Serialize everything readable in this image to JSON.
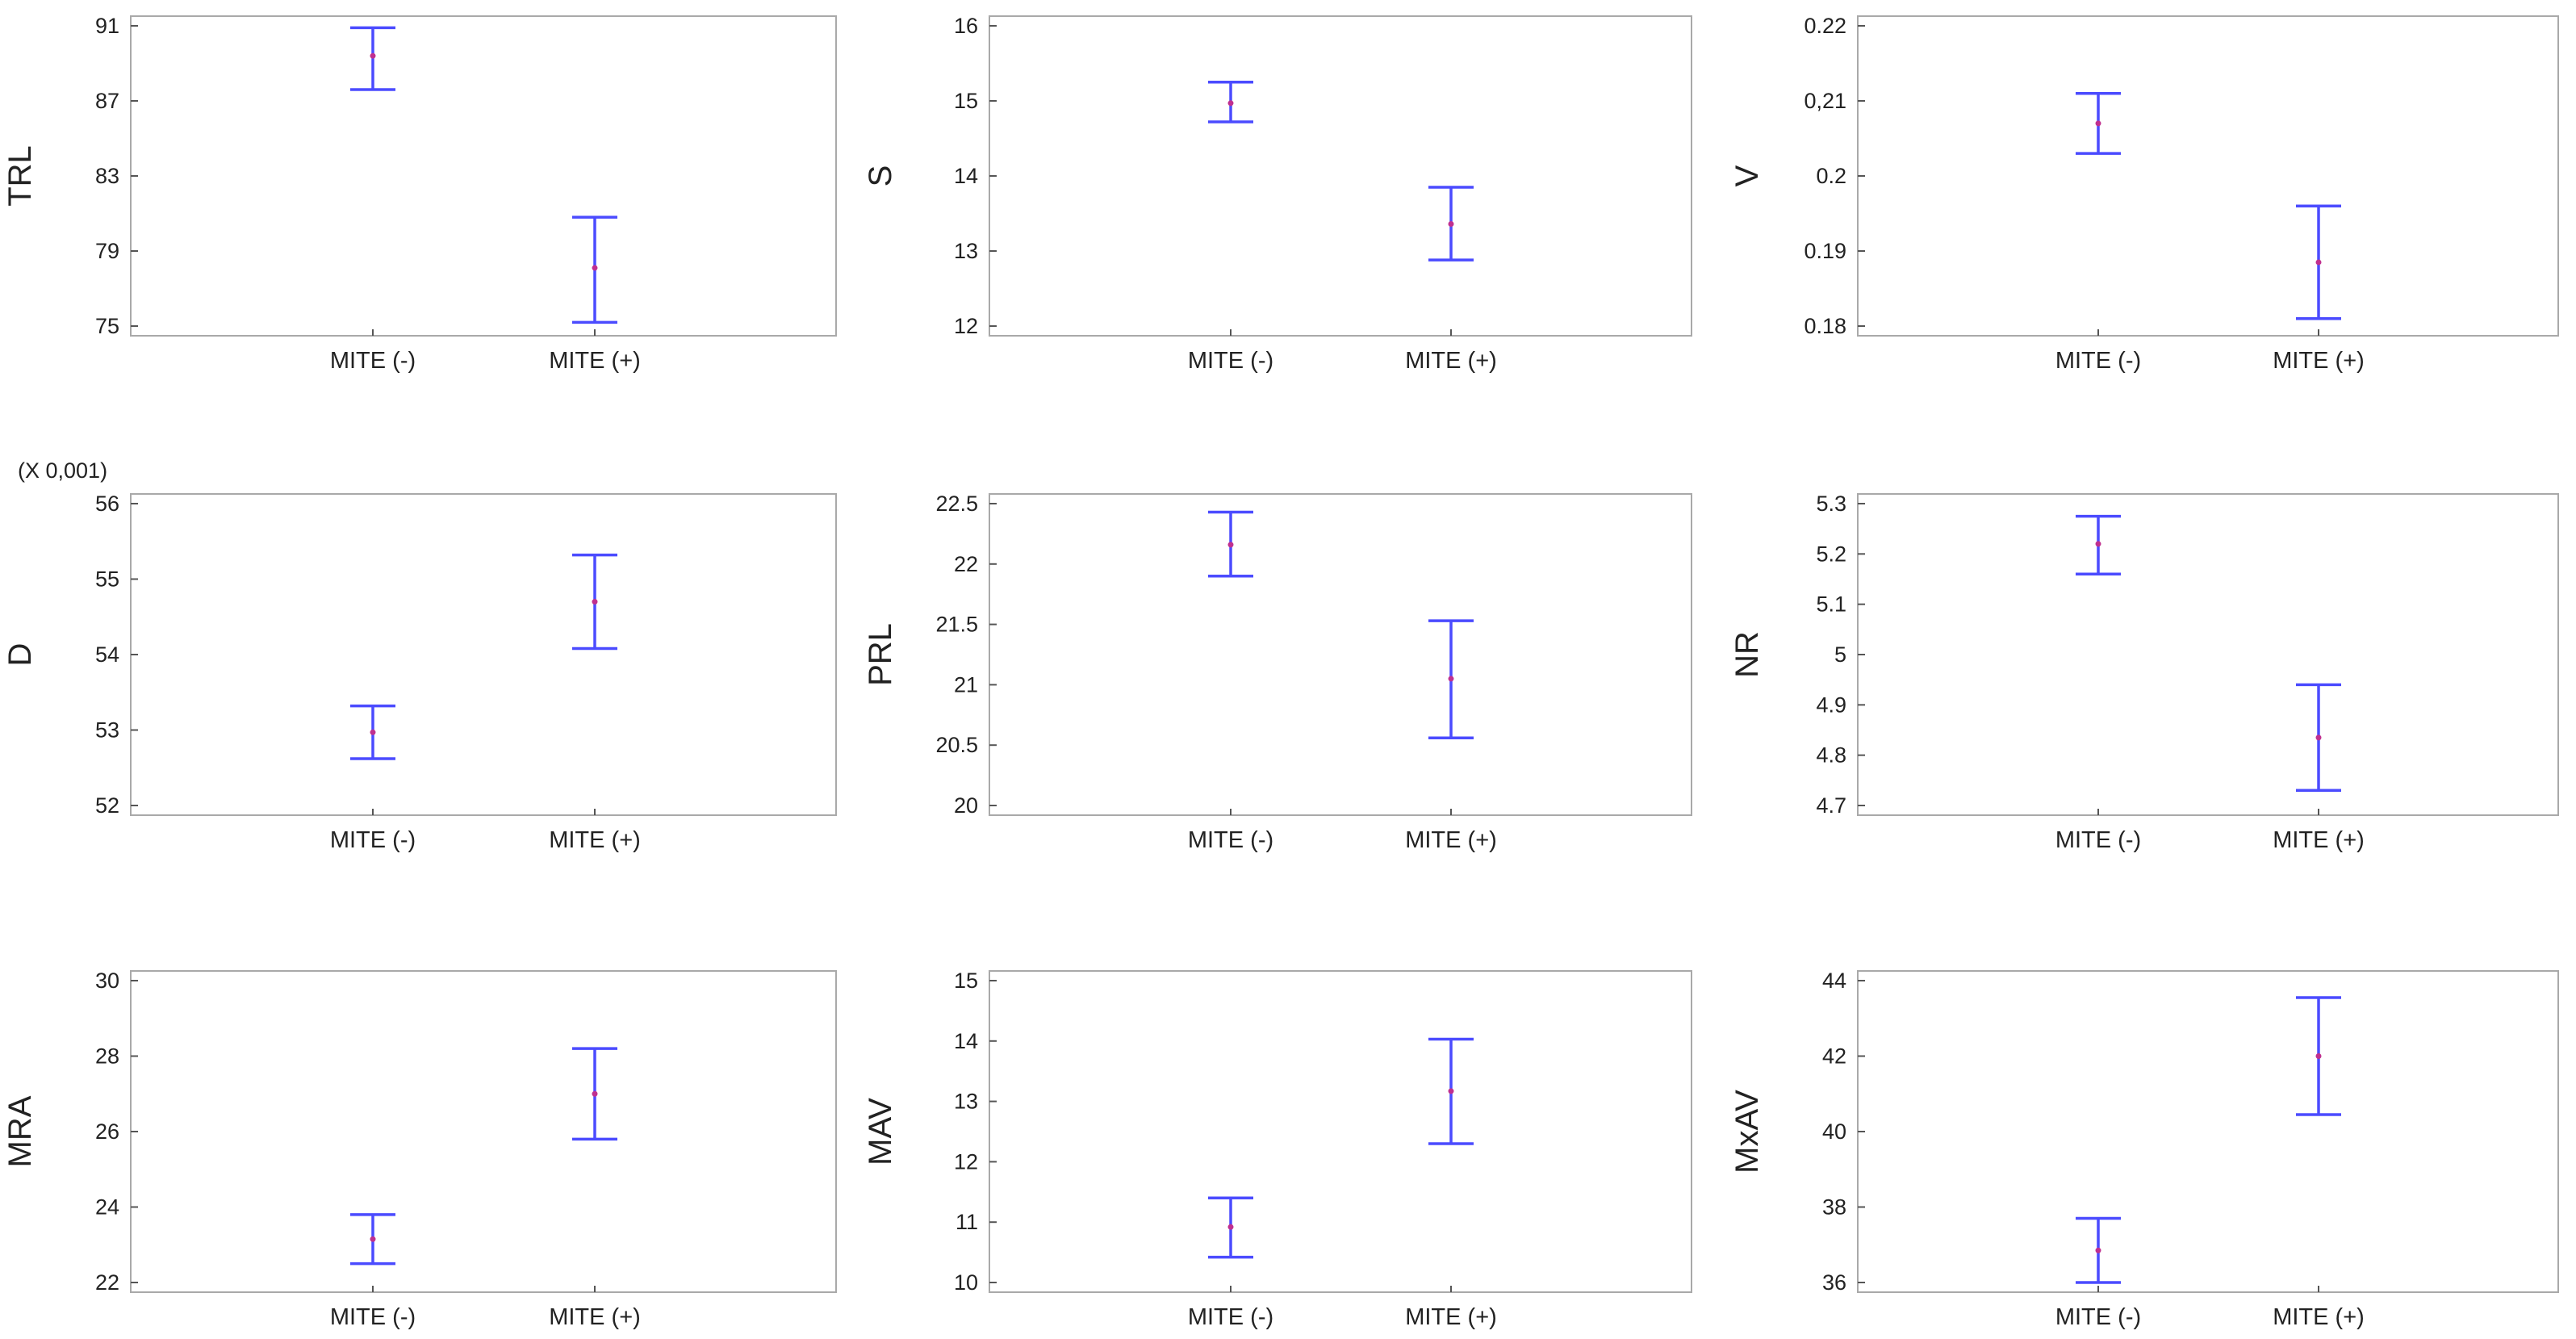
{
  "chart_data": [
    {
      "type": "errorbar",
      "ylabel": "TRL",
      "categories": [
        "MITE (-)",
        "MITE (+)"
      ],
      "ylim": [
        75,
        91
      ],
      "yticks": [
        75,
        79,
        83,
        87,
        91
      ],
      "ytick_labels": [
        "75",
        "79",
        "83",
        "87",
        "91"
      ],
      "series": [
        {
          "category": "MITE (-)",
          "mean": 89.4,
          "lower": 87.6,
          "upper": 90.9
        },
        {
          "category": "MITE (+)",
          "mean": 78.1,
          "lower": 75.2,
          "upper": 80.8
        }
      ],
      "colors": {
        "bar": "#4b4bff",
        "mean": "#c0308f"
      }
    },
    {
      "type": "errorbar",
      "ylabel": "S",
      "categories": [
        "MITE (-)",
        "MITE (+)"
      ],
      "ylim": [
        12,
        16
      ],
      "yticks": [
        12,
        13,
        14,
        15,
        16
      ],
      "ytick_labels": [
        "12",
        "13",
        "14",
        "15",
        "16"
      ],
      "series": [
        {
          "category": "MITE (-)",
          "mean": 14.97,
          "lower": 14.72,
          "upper": 15.25
        },
        {
          "category": "MITE (+)",
          "mean": 13.36,
          "lower": 12.88,
          "upper": 13.85
        }
      ],
      "colors": {
        "bar": "#4b4bff",
        "mean": "#c0308f"
      }
    },
    {
      "type": "errorbar",
      "ylabel": "V",
      "categories": [
        "MITE (-)",
        "MITE (+)"
      ],
      "ylim": [
        0.18,
        0.22
      ],
      "yticks": [
        0.18,
        0.19,
        0.2,
        0.21,
        0.22
      ],
      "ytick_labels": [
        "0.18",
        "0.19",
        "0.2",
        "0,21",
        "0.22"
      ],
      "series": [
        {
          "category": "MITE (-)",
          "mean": 0.207,
          "lower": 0.203,
          "upper": 0.211
        },
        {
          "category": "MITE (+)",
          "mean": 0.1885,
          "lower": 0.181,
          "upper": 0.196
        }
      ],
      "colors": {
        "bar": "#4b4bff",
        "mean": "#c0308f"
      }
    },
    {
      "type": "errorbar",
      "ylabel": "D",
      "multiplier_label": "(X 0,001)",
      "categories": [
        "MITE (-)",
        "MITE (+)"
      ],
      "ylim": [
        52,
        56
      ],
      "yticks": [
        52,
        53,
        54,
        55,
        56
      ],
      "ytick_labels": [
        "52",
        "53",
        "54",
        "55",
        "56"
      ],
      "series": [
        {
          "category": "MITE (-)",
          "mean": 52.97,
          "lower": 52.62,
          "upper": 53.32
        },
        {
          "category": "MITE (+)",
          "mean": 54.7,
          "lower": 54.08,
          "upper": 55.32
        }
      ],
      "colors": {
        "bar": "#4b4bff",
        "mean": "#c0308f"
      }
    },
    {
      "type": "errorbar",
      "ylabel": "PRL",
      "categories": [
        "MITE (-)",
        "MITE (+)"
      ],
      "ylim": [
        20,
        22.5
      ],
      "yticks": [
        20,
        20.5,
        21,
        21.5,
        22,
        22.5
      ],
      "ytick_labels": [
        "20",
        "20.5",
        "21",
        "21.5",
        "22",
        "22.5"
      ],
      "series": [
        {
          "category": "MITE (-)",
          "mean": 22.16,
          "lower": 21.9,
          "upper": 22.43
        },
        {
          "category": "MITE (+)",
          "mean": 21.05,
          "lower": 20.56,
          "upper": 21.53
        }
      ],
      "colors": {
        "bar": "#4b4bff",
        "mean": "#c0308f"
      }
    },
    {
      "type": "errorbar",
      "ylabel": "NR",
      "categories": [
        "MITE (-)",
        "MITE (+)"
      ],
      "ylim": [
        4.7,
        5.3
      ],
      "yticks": [
        4.7,
        4.8,
        4.9,
        5,
        5.1,
        5.2,
        5.3
      ],
      "ytick_labels": [
        "4.7",
        "4.8",
        "4.9",
        "5",
        "5.1",
        "5.2",
        "5.3"
      ],
      "series": [
        {
          "category": "MITE (-)",
          "mean": 5.22,
          "lower": 5.16,
          "upper": 5.275
        },
        {
          "category": "MITE (+)",
          "mean": 4.835,
          "lower": 4.73,
          "upper": 4.94
        }
      ],
      "colors": {
        "bar": "#4b4bff",
        "mean": "#c0308f"
      }
    },
    {
      "type": "errorbar",
      "ylabel": "MRA",
      "categories": [
        "MITE (-)",
        "MITE (+)"
      ],
      "ylim": [
        22,
        30
      ],
      "yticks": [
        22,
        24,
        26,
        28,
        30
      ],
      "ytick_labels": [
        "22",
        "24",
        "26",
        "28",
        "30"
      ],
      "series": [
        {
          "category": "MITE (-)",
          "mean": 23.15,
          "lower": 22.5,
          "upper": 23.8
        },
        {
          "category": "MITE (+)",
          "mean": 27,
          "lower": 25.8,
          "upper": 28.2
        }
      ],
      "colors": {
        "bar": "#4b4bff",
        "mean": "#c0308f"
      }
    },
    {
      "type": "errorbar",
      "ylabel": "MAV",
      "categories": [
        "MITE (-)",
        "MITE (+)"
      ],
      "ylim": [
        10,
        15
      ],
      "yticks": [
        10,
        11,
        12,
        13,
        14,
        15
      ],
      "ytick_labels": [
        "10",
        "11",
        "12",
        "13",
        "14",
        "15"
      ],
      "series": [
        {
          "category": "MITE (-)",
          "mean": 10.92,
          "lower": 10.42,
          "upper": 11.4
        },
        {
          "category": "MITE (+)",
          "mean": 13.17,
          "lower": 12.3,
          "upper": 14.03
        }
      ],
      "colors": {
        "bar": "#4b4bff",
        "mean": "#c0308f"
      }
    },
    {
      "type": "errorbar",
      "ylabel": "MxAV",
      "categories": [
        "MITE (-)",
        "MITE (+)"
      ],
      "ylim": [
        36,
        44
      ],
      "yticks": [
        36,
        38,
        40,
        42,
        44
      ],
      "ytick_labels": [
        "36",
        "38",
        "40",
        "42",
        "44"
      ],
      "series": [
        {
          "category": "MITE (-)",
          "mean": 36.85,
          "lower": 36,
          "upper": 37.7
        },
        {
          "category": "MITE (+)",
          "mean": 42,
          "lower": 40.45,
          "upper": 43.55
        }
      ],
      "colors": {
        "bar": "#4b4bff",
        "mean": "#c0308f"
      }
    }
  ]
}
